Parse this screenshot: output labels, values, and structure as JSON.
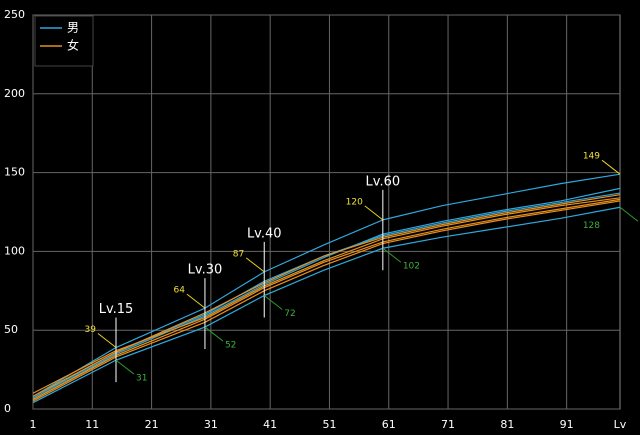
{
  "chart_data": {
    "type": "line",
    "x_label": "Lv",
    "x": [
      1,
      15,
      30,
      40,
      50,
      60,
      70,
      80,
      90,
      100
    ],
    "xlim": [
      1,
      100
    ],
    "xticks": [
      1,
      11,
      21,
      31,
      41,
      51,
      61,
      71,
      81,
      91
    ],
    "ylim": [
      0,
      250
    ],
    "yticks": [
      0,
      50,
      100,
      150,
      200,
      250
    ],
    "grid": true,
    "legend": "top-left",
    "series": [
      {
        "name": "男",
        "color": "#2fa8dc",
        "values": [
          8,
          39,
          64,
          87,
          104,
          120,
          129,
          136,
          143,
          149
        ]
      },
      {
        "name": "男",
        "color": "#2fa8dc",
        "values": [
          4,
          31,
          52,
          72,
          88,
          102,
          109,
          115,
          121,
          128
        ]
      },
      {
        "name": "男",
        "color": "#2fa8dc",
        "values": [
          6,
          35,
          59,
          79,
          96,
          111,
          119,
          126,
          132,
          140
        ]
      },
      {
        "name": "男",
        "color": "#2fa8dc",
        "values": [
          7,
          36,
          60,
          81,
          97,
          110,
          118,
          125,
          131,
          137
        ]
      },
      {
        "name": "女",
        "color": "#e8901f",
        "values": [
          10,
          37,
          58,
          78,
          94,
          108,
          116,
          123,
          129,
          134
        ]
      },
      {
        "name": "女",
        "color": "#e8901f",
        "values": [
          5,
          33,
          55,
          75,
          91,
          105,
          113,
          120,
          126,
          132
        ]
      },
      {
        "name": "女",
        "color": "#e8901f",
        "values": [
          8,
          36,
          61,
          80,
          97,
          109,
          117,
          124,
          130,
          136
        ]
      },
      {
        "name": "女",
        "color": "#e8901f",
        "values": [
          6,
          34,
          57,
          77,
          93,
          106,
          114,
          121,
          127,
          133
        ]
      }
    ],
    "annotations": [
      {
        "label": "Lv.15",
        "x": 15,
        "high": 39,
        "low": 31
      },
      {
        "label": "Lv.30",
        "x": 30,
        "high": 64,
        "low": 52
      },
      {
        "label": "Lv.40",
        "x": 40,
        "high": 87,
        "low": 72
      },
      {
        "label": "Lv.60",
        "x": 60,
        "high": 120,
        "low": 102
      },
      {
        "x": 100,
        "high": 149,
        "low": 128
      }
    ]
  }
}
